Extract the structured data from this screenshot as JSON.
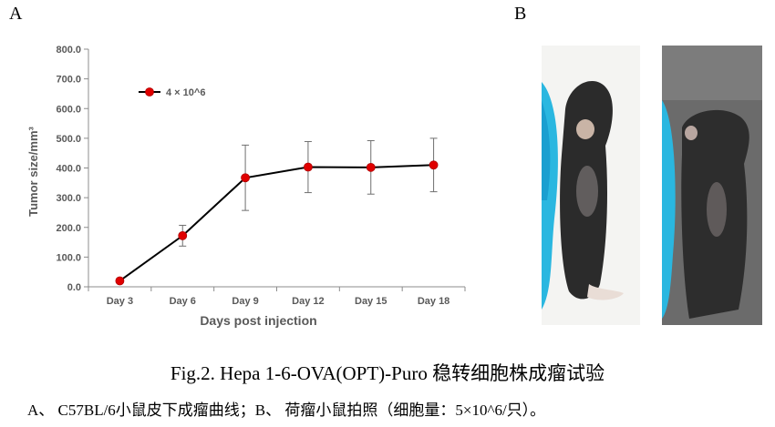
{
  "panels": {
    "a": "A",
    "b": "B"
  },
  "chart_data": {
    "type": "line",
    "categories": [
      "Day 3",
      "Day 6",
      "Day 9",
      "Day 12",
      "Day 15",
      "Day 18"
    ],
    "series": [
      {
        "name": "4 × 10^6",
        "values": [
          20,
          172,
          367,
          403,
          402,
          410
        ],
        "error": [
          0,
          35,
          110,
          86,
          90,
          90
        ],
        "color": "#e00000"
      }
    ],
    "xlabel": "Days post injection",
    "ylabel": "Tumor size/mm³",
    "ylim": [
      0,
      800
    ],
    "yticks": [
      "0.0",
      "100.0",
      "200.0",
      "300.0",
      "400.0",
      "500.0",
      "600.0",
      "700.0",
      "800.0"
    ],
    "grid": false,
    "legend": "top-left"
  },
  "caption": {
    "title": "Fig.2. Hepa 1-6-OVA(OPT)-Puro 稳转细胞株成瘤试验",
    "subtitle": "A、 C57BL/6小鼠皮下成瘤曲线；B、 荷瘤小鼠拍照（细胞量：5×10^6/只）。"
  }
}
